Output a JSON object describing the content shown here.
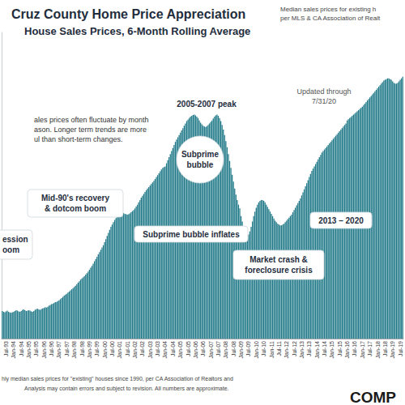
{
  "chart_data": {
    "type": "bar",
    "title": "Cruz County Home Price Appreciation",
    "subtitle": "House Sales Prices, 6-Month Rolling Average",
    "source_note": [
      "Median sales prices for existing h",
      "per MLS & CA Association of Realt"
    ],
    "annotations": [
      [
        "2005-2007 peak"
      ],
      [
        "Subprime",
        "bubble"
      ],
      [
        "Updated through",
        "7/31/20"
      ],
      [
        "ales prices often fluctuate by month",
        "ason. Longer term trends are more",
        "ul than short-term changes."
      ],
      [
        "Mid-90's recovery",
        "& dotcom boom"
      ],
      [
        "ession",
        "oom"
      ],
      [
        "Subprime bubble inflates"
      ],
      [
        "Market crash &",
        "foreclosure crisis"
      ],
      [
        "2013 – 2020"
      ]
    ],
    "footer": [
      "hly median sales prices for \"existing\" houses since 1990, per CA Association of Realtors and",
      "Analysis may contain errors and subject to revision. All numbers are approximate."
    ],
    "logo": "COMP",
    "categories": [
      null,
      null,
      null,
      "Jul-93",
      null,
      null,
      null,
      null,
      null,
      "Jan-94",
      null,
      null,
      null,
      null,
      null,
      "Jul-94",
      null,
      null,
      null,
      null,
      null,
      "Jan-95",
      null,
      null,
      null,
      null,
      null,
      "Jul-95",
      null,
      null,
      null,
      null,
      null,
      "Jan-96",
      null,
      null,
      null,
      null,
      null,
      "Jul-96",
      null,
      null,
      null,
      null,
      null,
      "Jan-97",
      null,
      null,
      null,
      null,
      null,
      "Jul-97",
      null,
      null,
      null,
      null,
      null,
      "Jan-98",
      null,
      null,
      null,
      null,
      null,
      "Jul-98",
      null,
      null,
      null,
      null,
      null,
      "Jan-99",
      null,
      null,
      null,
      null,
      null,
      "Jul-99",
      null,
      null,
      null,
      null,
      null,
      "Jan-00",
      null,
      null,
      null,
      null,
      null,
      "Jul-00",
      null,
      null,
      null,
      null,
      null,
      "Jan-01",
      null,
      null,
      null,
      null,
      null,
      "Jul-01",
      null,
      null,
      null,
      null,
      null,
      "Jan-02",
      null,
      null,
      null,
      null,
      null,
      "Jul-02",
      null,
      null,
      null,
      null,
      null,
      "Jan-03",
      null,
      null,
      null,
      null,
      null,
      "Jul-03",
      null,
      null,
      null,
      null,
      null,
      "Jan-04",
      null,
      null,
      null,
      null,
      null,
      "Jul-04",
      null,
      null,
      null,
      null,
      null,
      "Jan-05",
      null,
      null,
      null,
      null,
      null,
      "Jul-05",
      null,
      null,
      null,
      null,
      null,
      "Jan-06",
      null,
      null,
      null,
      null,
      null,
      "Jul-06",
      null,
      null,
      null,
      null,
      null,
      "Jan-07",
      null,
      null,
      null,
      null,
      null,
      "Jul-07",
      null,
      null,
      null,
      null,
      null,
      "Jan-08",
      null,
      null,
      null,
      null,
      null,
      "Jul-08",
      null,
      null,
      null,
      null,
      null,
      "Jan-09",
      null,
      null,
      null,
      null,
      null,
      "Jul-09",
      null,
      null,
      null,
      null,
      null,
      "Jan-10",
      null,
      null,
      null,
      null,
      null,
      "Jul-10",
      null,
      null,
      null,
      null,
      null,
      "Jan-11",
      null,
      null,
      null,
      null,
      null,
      "Jul-11",
      null,
      null,
      null,
      null,
      null,
      "Jan-12",
      null,
      null,
      null,
      null,
      null,
      "Jul-12",
      null,
      null,
      null,
      null,
      null,
      "Jan-13",
      null,
      null,
      null,
      null,
      null,
      "Jul-13",
      null,
      null,
      null,
      null,
      null,
      "Jan-14",
      null,
      null,
      null,
      null,
      null,
      "Jul-14",
      null,
      null,
      null,
      null,
      null,
      "Jan-15",
      null,
      null,
      null,
      null,
      null,
      "Jul-15",
      null,
      null,
      null,
      null,
      null,
      "Jan-16",
      null,
      null,
      null,
      null,
      null,
      "Jul-16",
      null,
      null,
      null,
      null,
      null,
      "Jan-17",
      null,
      null,
      null,
      null,
      null,
      "Jul-17",
      null,
      null,
      null,
      null,
      null,
      "Jan-18",
      null,
      null,
      null,
      null,
      null,
      "Jul-18",
      null,
      null,
      null,
      null,
      null,
      "Jan-19",
      null,
      null,
      null,
      null,
      null,
      "Jul-19",
      null,
      null
    ],
    "values": [
      252000,
      250000,
      249000,
      251000,
      253000,
      250000,
      248000,
      247000,
      249000,
      250000,
      252000,
      254000,
      253000,
      251000,
      250000,
      252000,
      255000,
      256000,
      254000,
      252000,
      253000,
      254000,
      253000,
      251000,
      250000,
      252000,
      255000,
      257000,
      258000,
      256000,
      255000,
      257000,
      259000,
      260000,
      262000,
      261000,
      263000,
      266000,
      268000,
      270000,
      271000,
      273000,
      275000,
      276000,
      278000,
      280000,
      283000,
      286000,
      289000,
      292000,
      295000,
      297000,
      300000,
      303000,
      306000,
      309000,
      312000,
      315000,
      318000,
      322000,
      326000,
      330000,
      334000,
      337000,
      340000,
      343000,
      347000,
      351000,
      355000,
      360000,
      365000,
      370000,
      376000,
      382000,
      388000,
      394000,
      400000,
      406000,
      412000,
      418000,
      424000,
      432000,
      440000,
      448000,
      456000,
      464000,
      472000,
      478000,
      484000,
      490000,
      495000,
      500000,
      505000,
      508000,
      510000,
      510000,
      508000,
      506000,
      505000,
      504000,
      505000,
      507000,
      510000,
      513000,
      516000,
      520000,
      525000,
      530000,
      536000,
      542000,
      548000,
      553000,
      558000,
      563000,
      568000,
      572000,
      576000,
      580000,
      584000,
      588000,
      592000,
      597000,
      602000,
      607000,
      612000,
      617000,
      622000,
      626000,
      628000,
      630000,
      638000,
      646000,
      654000,
      662000,
      670000,
      678000,
      686000,
      694000,
      700000,
      706000,
      712000,
      718000,
      724000,
      730000,
      736000,
      742000,
      748000,
      752000,
      756000,
      760000,
      762000,
      764000,
      765000,
      763000,
      760000,
      756000,
      750000,
      744000,
      740000,
      736000,
      734000,
      733000,
      735000,
      738000,
      742000,
      746000,
      750000,
      755000,
      760000,
      763000,
      765000,
      762000,
      756000,
      748000,
      738000,
      726000,
      712000,
      696000,
      680000,
      662000,
      644000,
      626000,
      608000,
      590000,
      572000,
      556000,
      542000,
      530000,
      520000,
      500000,
      486000,
      472000,
      460000,
      452000,
      448000,
      452000,
      460000,
      472000,
      486000,
      500000,
      512000,
      522000,
      530000,
      536000,
      540000,
      542000,
      542000,
      540000,
      536000,
      530000,
      524000,
      518000,
      512000,
      506000,
      500000,
      494000,
      488000,
      484000,
      480000,
      478000,
      476000,
      476000,
      478000,
      480000,
      484000,
      488000,
      492000,
      496000,
      500000,
      504000,
      510000,
      516000,
      522000,
      528000,
      534000,
      540000,
      546000,
      554000,
      562000,
      570000,
      578000,
      586000,
      594000,
      602000,
      610000,
      618000,
      624000,
      630000,
      636000,
      642000,
      648000,
      654000,
      660000,
      666000,
      670000,
      674000,
      678000,
      682000,
      686000,
      690000,
      694000,
      698000,
      702000,
      706000,
      710000,
      714000,
      718000,
      722000,
      726000,
      730000,
      734000,
      738000,
      742000,
      750000,
      753000,
      756000,
      759000,
      762000,
      765000,
      768000,
      771000,
      774000,
      777000,
      780000,
      783000,
      786000,
      790000,
      794000,
      798000,
      802000,
      806000,
      810000,
      814000,
      818000,
      822000,
      826000,
      830000,
      834000,
      838000,
      842000,
      846000,
      850000,
      854000,
      856000,
      858000,
      860000,
      860000,
      858000,
      856000,
      852000,
      848000,
      846000,
      846000,
      848000,
      852000,
      856000,
      860000,
      864000
    ],
    "color": "#237b8a",
    "ylim": [
      180000,
      980000
    ],
    "grid": false,
    "tick_labels": "x"
  }
}
